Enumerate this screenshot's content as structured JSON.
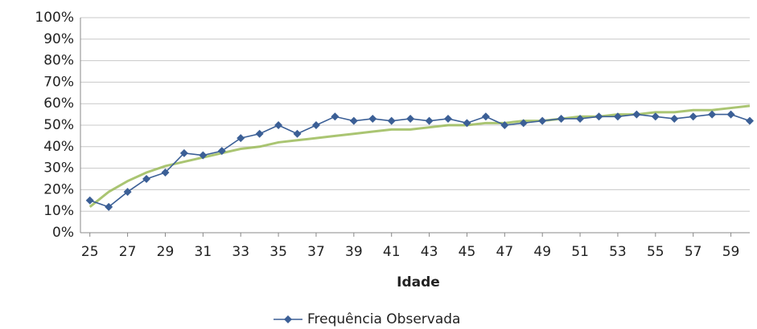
{
  "chart_data": {
    "type": "line",
    "x": [
      25,
      26,
      27,
      28,
      29,
      30,
      31,
      32,
      33,
      34,
      35,
      36,
      37,
      38,
      39,
      40,
      41,
      42,
      43,
      44,
      45,
      46,
      47,
      48,
      49,
      50,
      51,
      52,
      53,
      54,
      55,
      56,
      57,
      58,
      59,
      60
    ],
    "series": [
      {
        "name": "Frequência Observada",
        "color": "#3b5f96",
        "marker": "diamond",
        "values": [
          15,
          12,
          19,
          25,
          28,
          37,
          36,
          38,
          44,
          46,
          50,
          46,
          50,
          54,
          52,
          53,
          52,
          53,
          52,
          53,
          51,
          54,
          50,
          51,
          52,
          53,
          53,
          54,
          54,
          55,
          54,
          53,
          54,
          55,
          55,
          52
        ]
      },
      {
        "color": "#9bbb59",
        "values": [
          12,
          19,
          24,
          28,
          31,
          33,
          35,
          37,
          39,
          40,
          42,
          43,
          44,
          45,
          46,
          47,
          48,
          48,
          49,
          50,
          50,
          51,
          51,
          52,
          52,
          53,
          54,
          54,
          55,
          55,
          56,
          56,
          57,
          57,
          58,
          59
        ]
      }
    ],
    "xlabel": "Idade",
    "xlim": [
      24.5,
      60
    ],
    "xticks": [
      25,
      27,
      29,
      31,
      33,
      35,
      37,
      39,
      41,
      43,
      45,
      47,
      49,
      51,
      53,
      55,
      57,
      59
    ],
    "ylim": [
      0,
      100
    ],
    "yticks": [
      {
        "value": 0,
        "label": "0%"
      },
      {
        "value": 10,
        "label": "10%"
      },
      {
        "value": 20,
        "label": "20%"
      },
      {
        "value": 30,
        "label": "30%"
      },
      {
        "value": 40,
        "label": "40%"
      },
      {
        "value": 50,
        "label": "50%"
      },
      {
        "value": 60,
        "label": "60%"
      },
      {
        "value": 70,
        "label": "70%"
      },
      {
        "value": 80,
        "label": "80%"
      },
      {
        "value": 90,
        "label": "90%"
      },
      {
        "value": 100,
        "label": "100%"
      }
    ],
    "grid": true,
    "legend": "bottom"
  }
}
